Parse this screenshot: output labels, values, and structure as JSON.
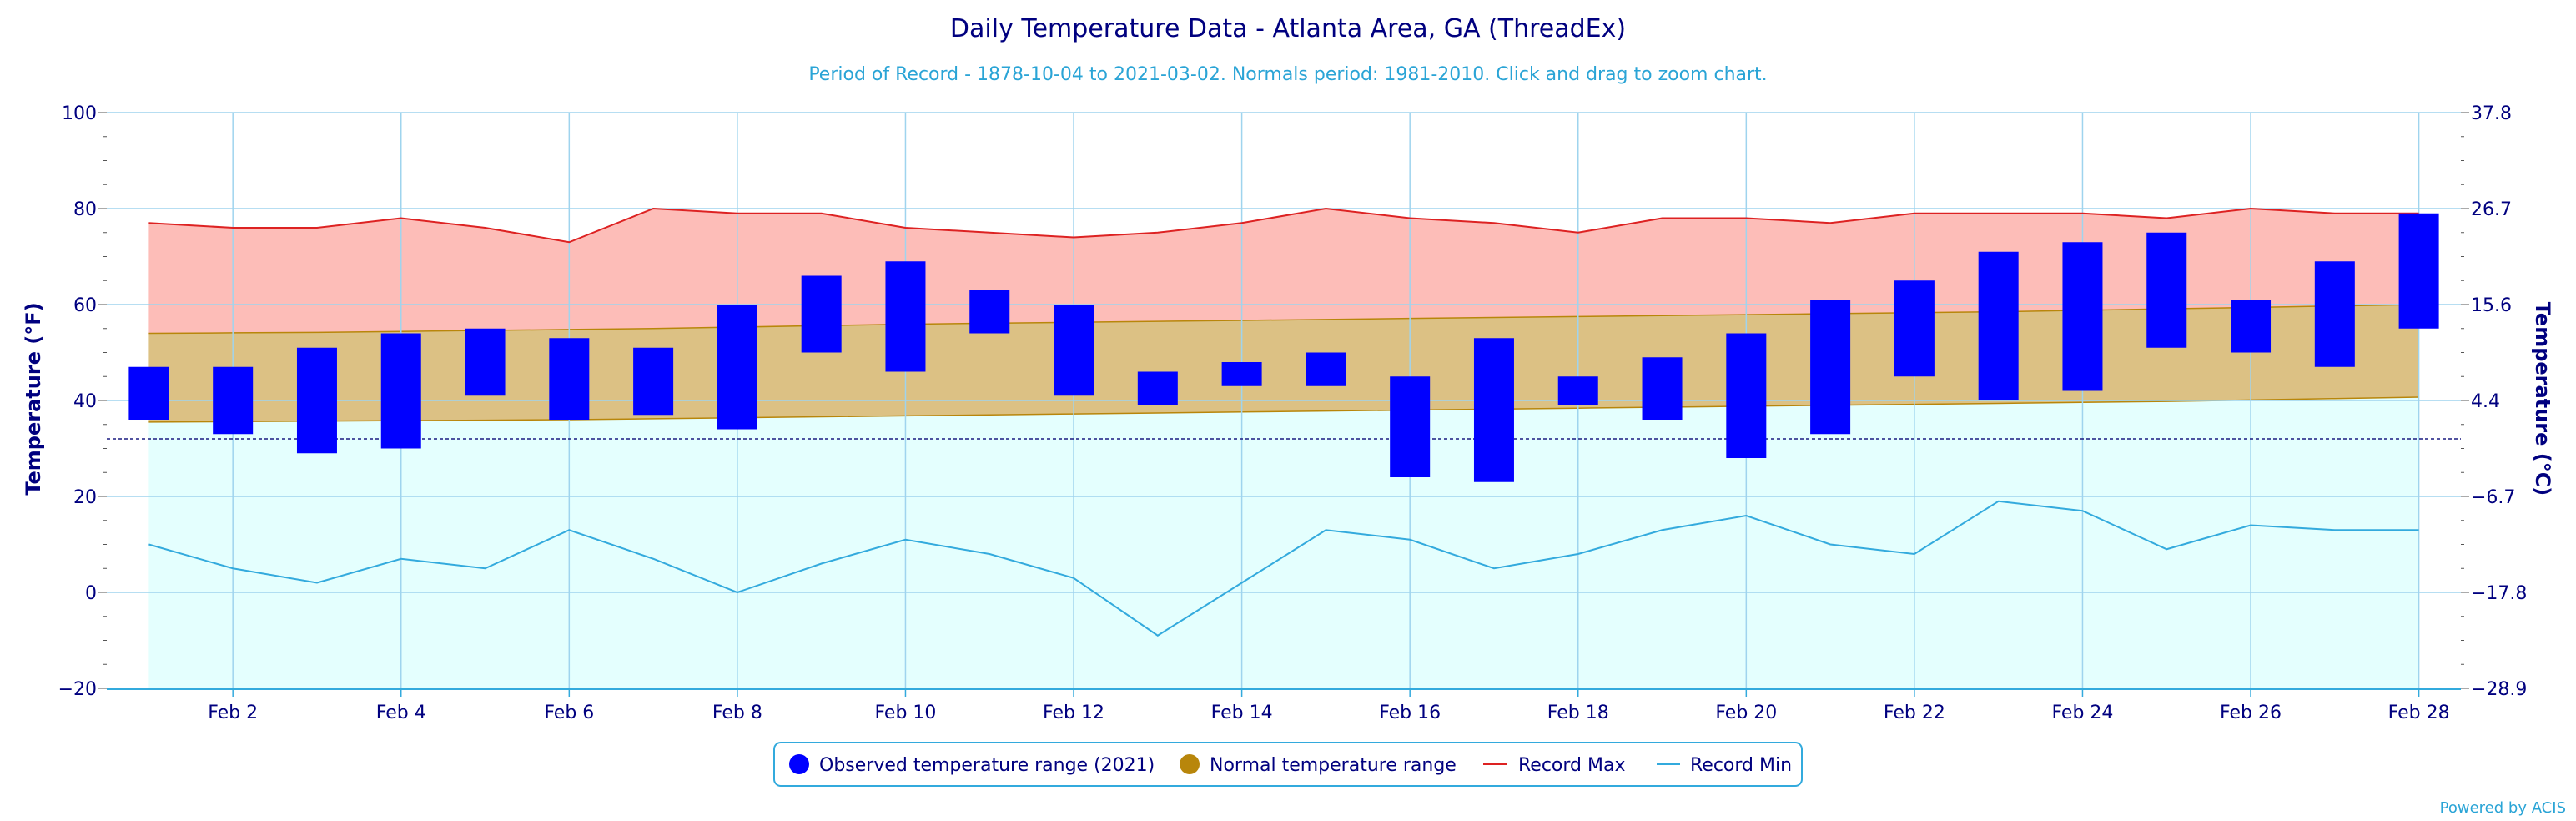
{
  "chart_data": {
    "type": "bar",
    "title": "Daily Temperature Data - Atlanta Area, GA (ThreadEx)",
    "subtitle": "Period of Record - 1878-10-04 to 2021-03-02. Normals period: 1981-2010. Click and drag to zoom chart.",
    "ylabel": "Temperature (°F)",
    "y2label": "Temperature (°C)",
    "ylim": [
      -20,
      100
    ],
    "y_ticks": [
      "100",
      "80",
      "60",
      "40",
      "20",
      "0",
      "−20"
    ],
    "y2_ticks": [
      "37.8",
      "26.7",
      "15.6",
      "4.4",
      "−6.7",
      "−17.8",
      "−28.9"
    ],
    "x_ticks": [
      {
        "day": 2,
        "label": "Feb 2"
      },
      {
        "day": 4,
        "label": "Feb 4"
      },
      {
        "day": 6,
        "label": "Feb 6"
      },
      {
        "day": 8,
        "label": "Feb 8"
      },
      {
        "day": 10,
        "label": "Feb 10"
      },
      {
        "day": 12,
        "label": "Feb 12"
      },
      {
        "day": 14,
        "label": "Feb 14"
      },
      {
        "day": 16,
        "label": "Feb 16"
      },
      {
        "day": 18,
        "label": "Feb 18"
      },
      {
        "day": 20,
        "label": "Feb 20"
      },
      {
        "day": 22,
        "label": "Feb 22"
      },
      {
        "day": 24,
        "label": "Feb 24"
      },
      {
        "day": 26,
        "label": "Feb 26"
      },
      {
        "day": 28,
        "label": "Feb 28"
      }
    ],
    "freezing_line": 32,
    "grid": true,
    "legend_position": "bottom-center",
    "days": [
      1,
      2,
      3,
      4,
      5,
      6,
      7,
      8,
      9,
      10,
      11,
      12,
      13,
      14,
      15,
      16,
      17,
      18,
      19,
      20,
      21,
      22,
      23,
      24,
      25,
      26,
      27,
      28
    ],
    "series": [
      {
        "name": "Observed temperature range (2021)",
        "kind": "range-bar",
        "color": "#0000ff",
        "low": [
          36,
          33,
          29,
          30,
          41,
          36,
          37,
          34,
          50,
          46,
          54,
          41,
          39,
          43,
          43,
          24,
          23,
          39,
          36,
          28,
          33,
          45,
          40,
          42,
          51,
          50,
          47,
          55
        ],
        "high": [
          47,
          47,
          51,
          54,
          55,
          53,
          51,
          60,
          66,
          69,
          63,
          60,
          46,
          48,
          50,
          45,
          53,
          45,
          49,
          54,
          61,
          65,
          71,
          73,
          75,
          61,
          69,
          79
        ]
      },
      {
        "name": "Normal temperature range",
        "kind": "band",
        "color": "#b8860b",
        "fill": "#dcc184",
        "low": [
          35.5,
          35.6,
          35.7,
          35.8,
          35.9,
          36.0,
          36.2,
          36.4,
          36.6,
          36.8,
          37.0,
          37.2,
          37.4,
          37.6,
          37.8,
          38.0,
          38.2,
          38.4,
          38.6,
          38.8,
          39.0,
          39.2,
          39.4,
          39.6,
          39.8,
          40.1,
          40.4,
          40.7
        ],
        "high": [
          54.0,
          54.1,
          54.2,
          54.4,
          54.6,
          54.8,
          55.0,
          55.3,
          55.6,
          55.9,
          56.1,
          56.3,
          56.5,
          56.7,
          56.9,
          57.1,
          57.3,
          57.5,
          57.7,
          57.9,
          58.1,
          58.3,
          58.5,
          58.8,
          59.1,
          59.4,
          59.7,
          60.0
        ]
      },
      {
        "name": "Record Max",
        "kind": "line",
        "color": "#dd2222",
        "fill": "#fdbdb8",
        "values": [
          77,
          76,
          76,
          78,
          76,
          73,
          80,
          79,
          79,
          76,
          75,
          74,
          75,
          77,
          80,
          78,
          77,
          75,
          78,
          78,
          77,
          79,
          79,
          79,
          78,
          80,
          79,
          79
        ]
      },
      {
        "name": "Record Min",
        "kind": "line",
        "color": "#33aadd",
        "fill": "#e4fffe",
        "values": [
          10,
          5,
          2,
          7,
          5,
          13,
          7,
          0,
          6,
          11,
          8,
          3,
          -9,
          2,
          13,
          11,
          5,
          8,
          13,
          16,
          10,
          8,
          19,
          17,
          9,
          14,
          13,
          13
        ]
      }
    ],
    "credit": "Powered by ACIS"
  }
}
